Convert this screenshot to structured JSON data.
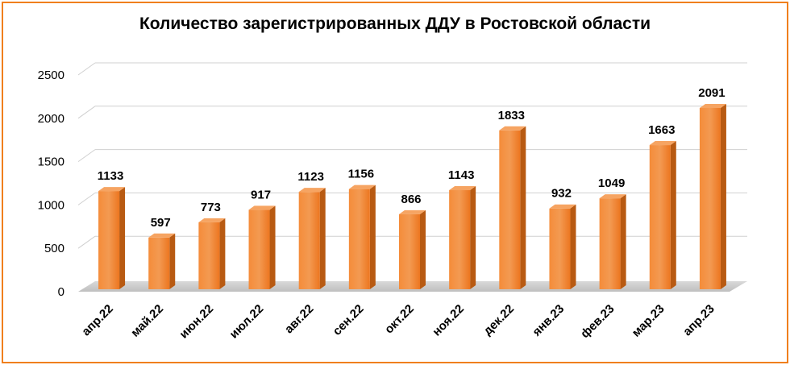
{
  "chart_data": {
    "type": "bar",
    "title": "Количество зарегистрированных ДДУ в Ростовской области",
    "categories": [
      "апр.22",
      "май.22",
      "июн.22",
      "июл.22",
      "авг.22",
      "сен.22",
      "окт.22",
      "ноя.22",
      "дек.22",
      "янв.23",
      "фев.23",
      "мар.23",
      "апр.23"
    ],
    "values": [
      1133,
      597,
      773,
      917,
      1123,
      1156,
      866,
      1143,
      1833,
      932,
      1049,
      1663,
      2091
    ],
    "ylim": [
      0,
      2500
    ],
    "yticks": [
      "0",
      "500",
      "1000",
      "1500",
      "2000",
      "2500"
    ],
    "grid": true,
    "legend": "none",
    "colors": {
      "bar_front": "#f07f1d",
      "bar_side": "#b85a12",
      "bar_top": "#f6a462",
      "frame": "#f07f1d"
    }
  }
}
